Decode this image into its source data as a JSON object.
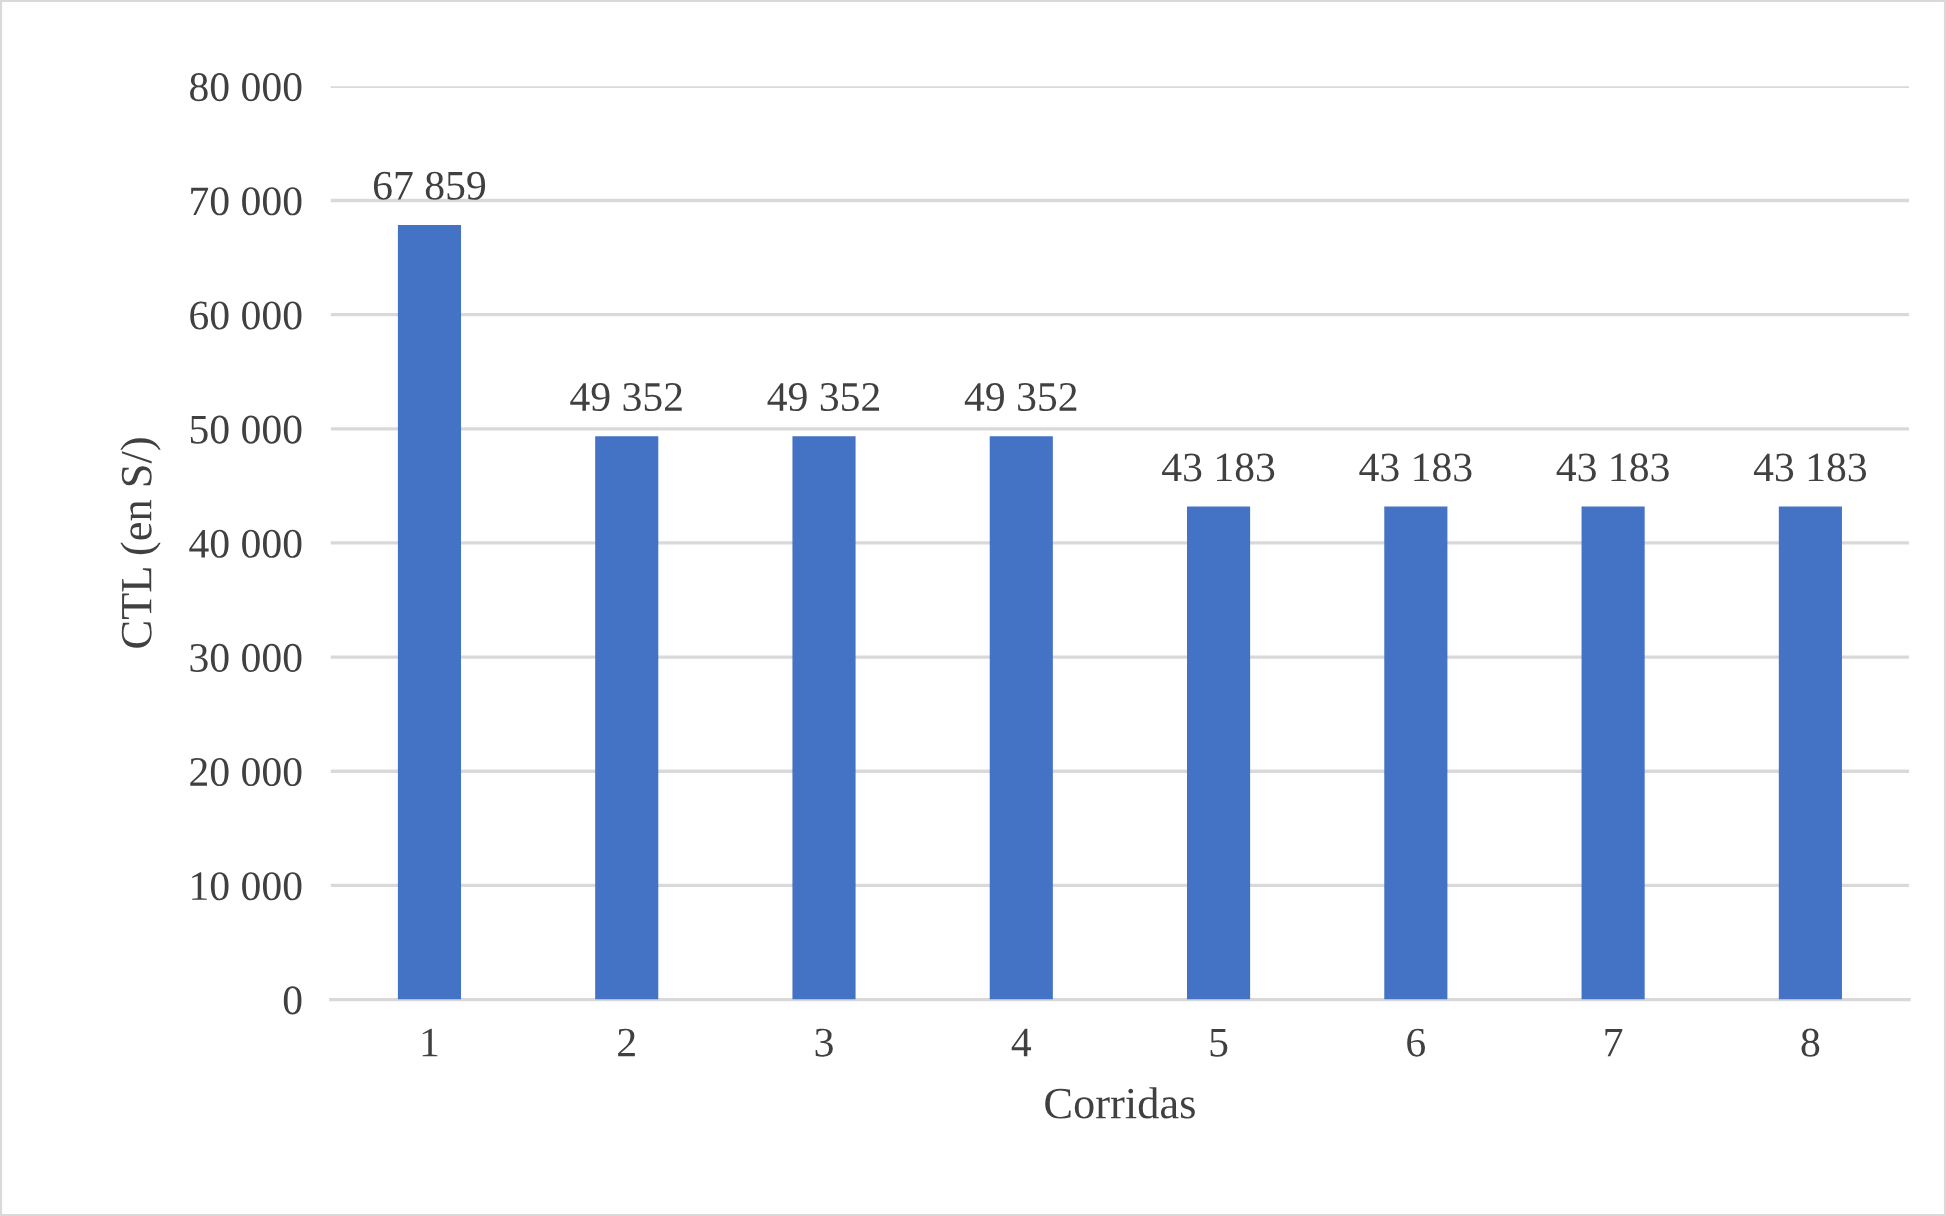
{
  "chart_data": {
    "type": "bar",
    "xlabel": "Corridas",
    "ylabel": "CTL (en S/)",
    "categories": [
      "1",
      "2",
      "3",
      "4",
      "5",
      "6",
      "7",
      "8"
    ],
    "values": [
      67859,
      49352,
      49352,
      49352,
      43183,
      43183,
      43183,
      43183
    ],
    "value_labels": [
      "67 859",
      "49 352",
      "49 352",
      "49 352",
      "43 183",
      "43 183",
      "43 183",
      "43 183"
    ],
    "color": "#4472c4",
    "ylim": [
      0,
      80000
    ],
    "yticks": [
      0,
      {
        "value": 10000,
        "label": "10 000"
      },
      {
        "value": 20000,
        "label": "20 000"
      },
      {
        "value": 30000,
        "label": "30 000"
      },
      {
        "value": 40000,
        "label": "40 000"
      },
      {
        "value": 50000,
        "label": "50 000"
      },
      {
        "value": 60000,
        "label": "60 000"
      },
      {
        "value": 70000,
        "label": "70 000"
      },
      {
        "value": 80000,
        "label": "80 000"
      }
    ],
    "grid": "y",
    "legend": false
  }
}
